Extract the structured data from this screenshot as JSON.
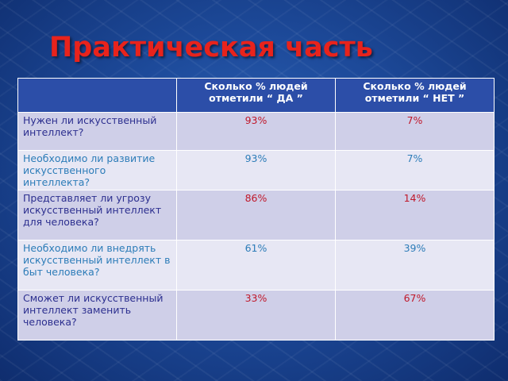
{
  "title": "Практическая часть",
  "table": {
    "headers": [
      "",
      "Сколько % людей отметили “ ДА ”",
      "Сколько % людей отметили “ НЕТ ”"
    ],
    "rows": [
      {
        "question": "Нужен ли искусственный интеллект?",
        "yes": "93%",
        "no": "7%"
      },
      {
        "question": "Необходимо ли развитие искусственного интеллекта?",
        "yes": "93%",
        "no": "7%"
      },
      {
        "question": "Представляет ли угрозу искусственный интеллект для человека?",
        "yes": "86%",
        "no": "14%"
      },
      {
        "question": "Необходимо ли внедрять искусственный интеллект в быт человека?",
        "yes": "61%",
        "no": "39%"
      },
      {
        "question": "Сможет ли искусственный интеллект заменить человека?",
        "yes": "33%",
        "no": "67%"
      }
    ]
  },
  "colors": {
    "title": "#e8231c",
    "header_bg": "#2c4ea8",
    "row_light": "#e7e7f4",
    "row_dark": "#cfcfe8",
    "question_text": "#2c2f8f",
    "value_text": "#c0182a"
  }
}
